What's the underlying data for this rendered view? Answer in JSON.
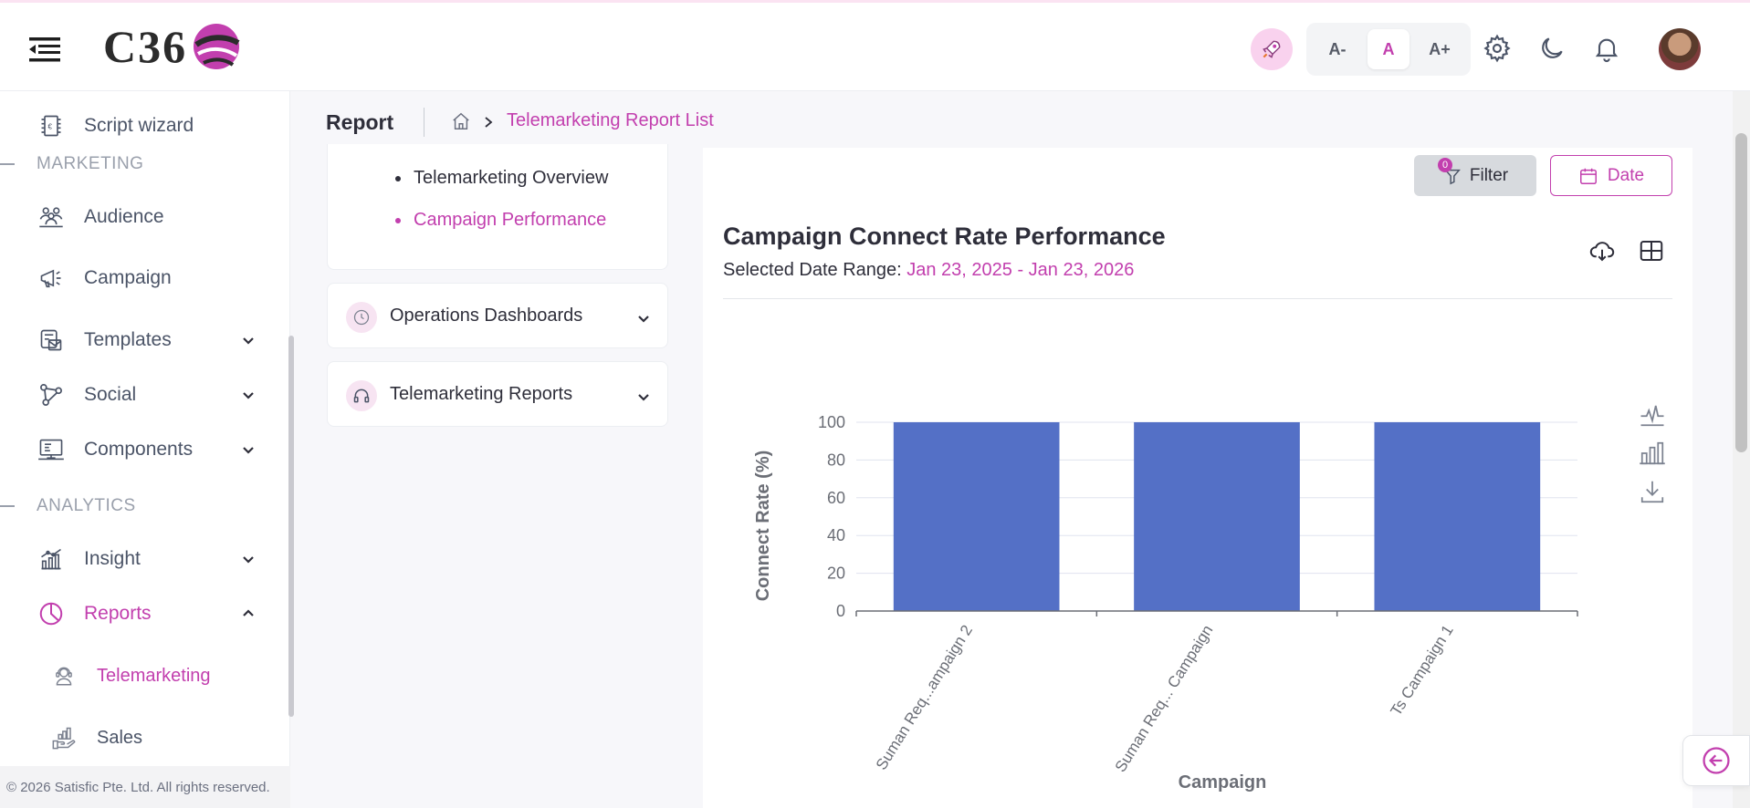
{
  "header": {
    "logo_text": "C36",
    "font_small": "A-",
    "font_normal": "A",
    "font_large": "A+"
  },
  "sidebar": {
    "items": [
      {
        "label": "Script wizard"
      },
      {
        "label": "Audience"
      },
      {
        "label": "Campaign"
      },
      {
        "label": "Templates"
      },
      {
        "label": "Social"
      },
      {
        "label": "Components"
      },
      {
        "label": "Insight"
      },
      {
        "label": "Reports"
      }
    ],
    "sections": [
      "MARKETING",
      "ANALYTICS"
    ],
    "sub_items": [
      {
        "label": "Telemarketing"
      },
      {
        "label": "Sales"
      }
    ],
    "copyright": "© 2026 Satisfic Pte. Ltd. All rights reserved."
  },
  "breadcrumb": {
    "title": "Report",
    "link": "Telemarketing Report List"
  },
  "left_panel": {
    "sub_list": [
      "Telemarketing Overview",
      "Campaign Performance"
    ],
    "accordions": [
      "Operations Dashboards",
      "Telemarketing Reports"
    ]
  },
  "toolbar": {
    "filter_label": "Filter",
    "filter_count": "0",
    "date_label": "Date"
  },
  "report": {
    "title": "Campaign Connect Rate Performance",
    "date_range_label": "Selected Date Range:",
    "date_range_value": "Jan 23, 2025 - Jan 23, 2026"
  },
  "chart_data": {
    "type": "bar",
    "categories": [
      "Suman Req...ampaign 2",
      "Suman Req... Campaign",
      "Ts Campaign 1"
    ],
    "values": [
      100,
      100,
      100
    ],
    "xlabel": "Campaign",
    "ylabel": "Connect Rate (%)",
    "ylim": [
      0,
      100
    ],
    "yticks": [
      0,
      20,
      40,
      60,
      80,
      100
    ],
    "grid": true,
    "bar_color": "#5470c6"
  },
  "colors": {
    "accent": "#c23fae",
    "bar": "#5470c6"
  }
}
